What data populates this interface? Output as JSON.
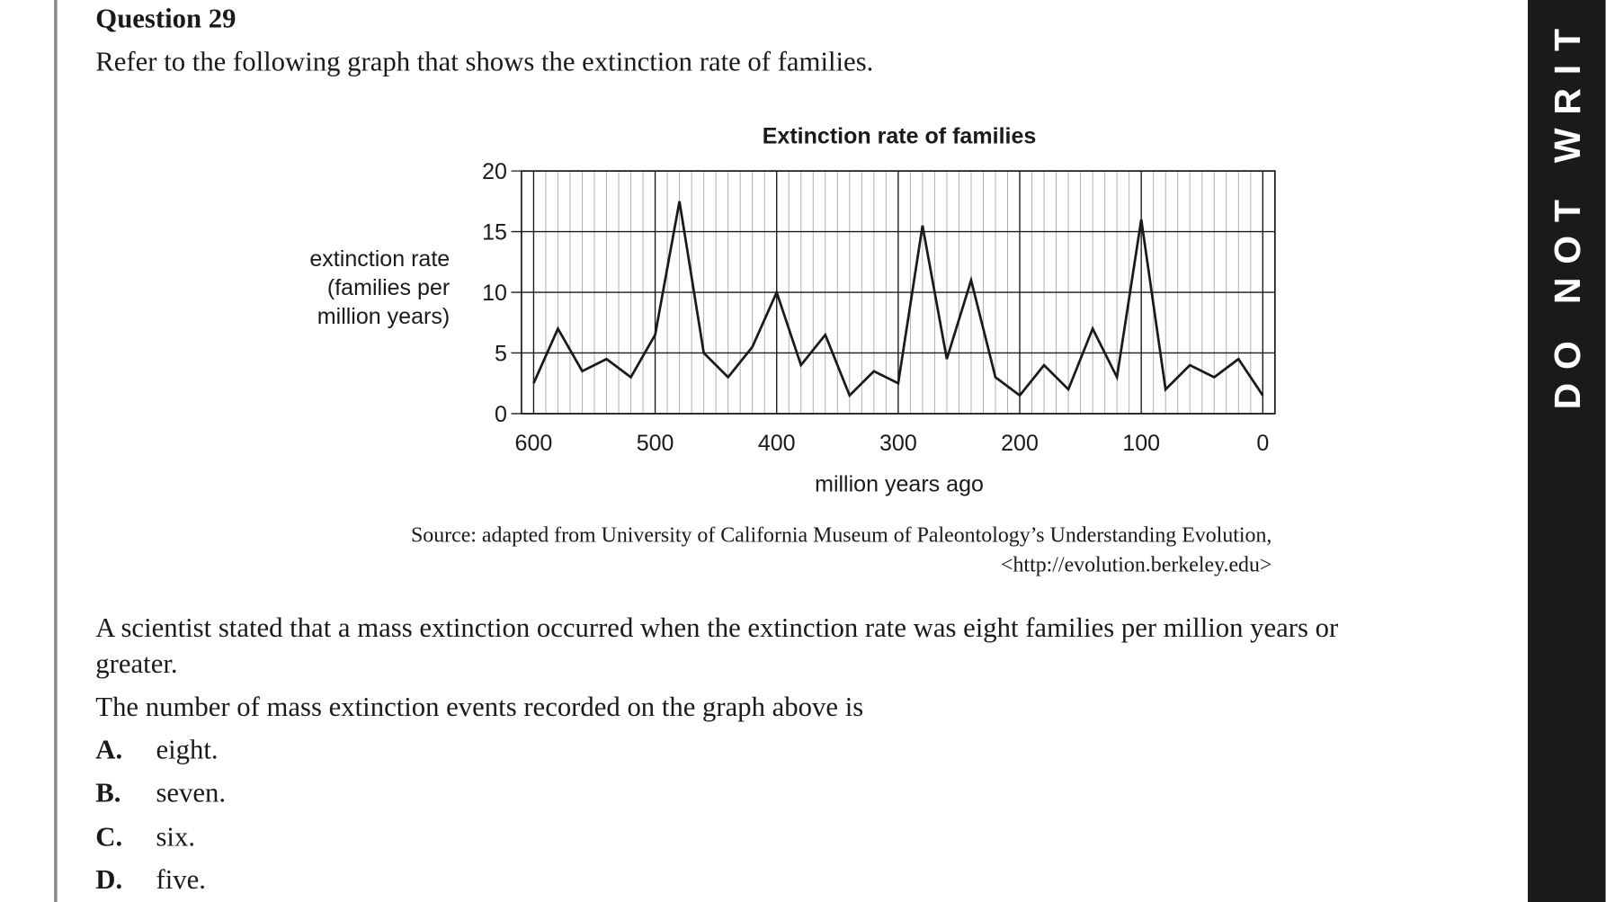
{
  "question": {
    "title": "Question 29",
    "intro": "Refer to the following graph that shows the extinction rate of families."
  },
  "chart_data": {
    "type": "line",
    "title": "Extinction rate of families",
    "ylabel": [
      "extinction rate",
      "(families per",
      "million years)"
    ],
    "xlabel": "million years ago",
    "x": [
      600,
      580,
      560,
      540,
      520,
      500,
      480,
      460,
      440,
      420,
      400,
      380,
      360,
      340,
      320,
      300,
      280,
      260,
      240,
      220,
      200,
      180,
      160,
      140,
      120,
      100,
      80,
      60,
      40,
      20,
      0
    ],
    "values": [
      2.5,
      7,
      3.5,
      4.5,
      3,
      6.5,
      17.5,
      5,
      3,
      5.5,
      10,
      4,
      6.5,
      1.5,
      3.5,
      2.5,
      15.5,
      4.5,
      11,
      3,
      1.5,
      4,
      2,
      7,
      3,
      16,
      2,
      4,
      3,
      4.5,
      1.5
    ],
    "color": "#1a1a1a",
    "xlim": [
      610,
      -10
    ],
    "xticks": [
      600,
      500,
      400,
      300,
      200,
      100,
      0
    ],
    "ylim": [
      0,
      20
    ],
    "yticks": [
      0,
      5,
      10,
      15,
      20
    ],
    "grid": true
  },
  "source": [
    "Source: adapted from University of California Museum of Paleontology’s Understanding Evolution,",
    "<http://evolution.berkeley.edu>"
  ],
  "stem": [
    "A scientist stated that a mass extinction occurred when the extinction rate was eight families per million years or",
    "greater."
  ],
  "prompt": "The number of mass extinction events recorded on the graph above is",
  "options": [
    {
      "letter": "A.",
      "text": "eight."
    },
    {
      "letter": "B.",
      "text": "seven."
    },
    {
      "letter": "C.",
      "text": "six."
    },
    {
      "letter": "D.",
      "text": "five."
    }
  ],
  "banner": "DO NOT WRIT"
}
